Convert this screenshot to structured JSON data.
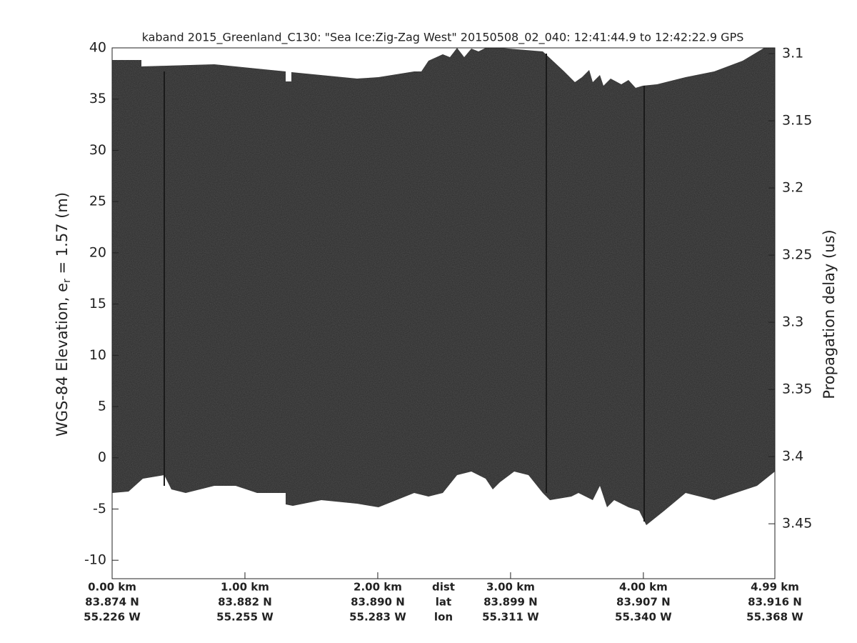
{
  "chart_data": {
    "type": "echogram",
    "title": "kaband 2015_Greenland_C130: \"Sea Ice:Zig-Zag West\"  20150508_02_040: 12:41:44.9 to 12:42:22.9 GPS",
    "ylabel": {
      "text": "WGS-84 Elevation, e",
      "sub": "r",
      "rest": " = 1.57 (m)"
    },
    "y2label": "Propagation delay (us)",
    "ylim": [
      -11.8,
      40
    ],
    "yticks": [
      -10,
      -5,
      0,
      5,
      10,
      15,
      20,
      25,
      30,
      35,
      40
    ],
    "y2lim": [
      3.4909,
      3.0957
    ],
    "y2ticks": [
      3.1,
      3.15,
      3.2,
      3.25,
      3.3,
      3.35,
      3.4,
      3.45
    ],
    "xlim": [
      0,
      4.99
    ],
    "xticks": [
      {
        "value": 0,
        "label": "0.00 km"
      },
      {
        "value": 1,
        "label": "1.00 km"
      },
      {
        "value": 2,
        "label": "2.00 km"
      },
      {
        "value": 3,
        "label": "3.00 km"
      },
      {
        "value": 4,
        "label": "4.00 km"
      },
      {
        "value": 4.99,
        "label": "4.99 km"
      }
    ],
    "lat_labels": [
      "83.874 N",
      "83.882 N",
      "83.890 N",
      "83.899 N",
      "83.907 N",
      "83.916 N"
    ],
    "lon_labels": [
      "55.226 W",
      "55.255 W",
      "55.283 W",
      "55.311 W",
      "55.340 W",
      "55.368 W"
    ],
    "row_labels": [
      "dist",
      "lat",
      "lon"
    ]
  }
}
